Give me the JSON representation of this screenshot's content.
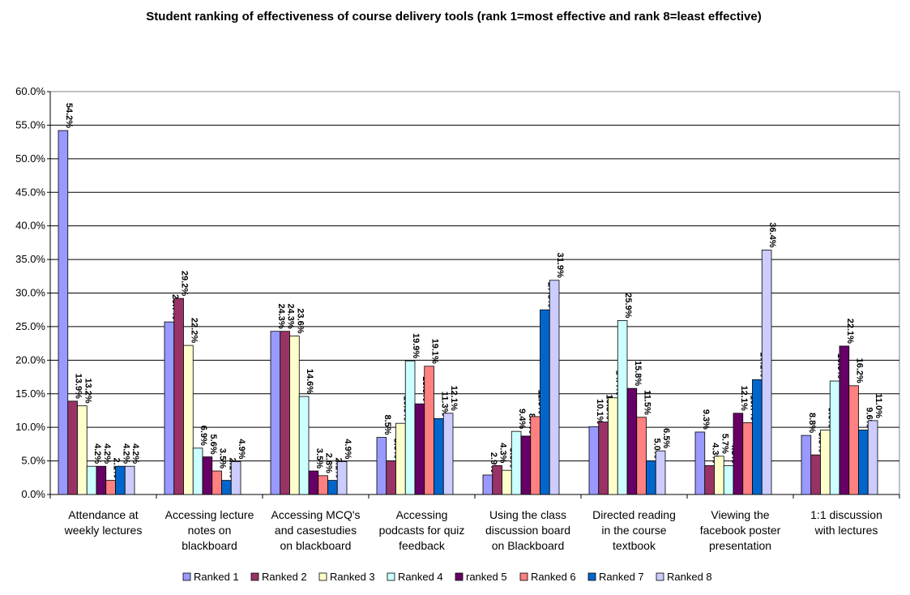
{
  "chart_data": {
    "type": "bar",
    "title": "Student ranking of effectiveness of course delivery tools (rank 1=most effective and rank 8=least effective)",
    "xlabel": "",
    "ylabel": "",
    "ylim": [
      0,
      60
    ],
    "yticks": [
      "0.0%",
      "5.0%",
      "10.0%",
      "15.0%",
      "20.0%",
      "25.0%",
      "30.0%",
      "35.0%",
      "40.0%",
      "45.0%",
      "50.0%",
      "55.0%",
      "60.0%"
    ],
    "grid": true,
    "legend_position": "bottom",
    "categories": [
      [
        "Attendance at",
        "weekly lectures"
      ],
      [
        "Accessing lecture",
        "notes on",
        "blackboard"
      ],
      [
        "Accessing MCQ's",
        "and casestudies",
        "on blackboard"
      ],
      [
        "Accessing",
        "podcasts for quiz",
        "feedback"
      ],
      [
        "Using the class",
        "discussion board",
        "on Blackboard"
      ],
      [
        "Directed reading",
        "in the course",
        "textbook"
      ],
      [
        "Viewing the",
        "facebook poster",
        "presentation"
      ],
      [
        "1:1 discussion",
        "with lectures"
      ]
    ],
    "series": [
      {
        "name": "Ranked 1",
        "color": "#9999ff",
        "values": [
          54.2,
          25.7,
          24.3,
          8.5,
          2.9,
          10.1,
          9.3,
          8.8
        ],
        "labels": [
          "54.2%",
          "25.7%",
          "24.3%",
          "8.5%",
          "2.9%",
          "10.1%",
          "9.3%",
          "8.8%"
        ]
      },
      {
        "name": "Ranked 2",
        "color": "#993366",
        "values": [
          13.9,
          29.2,
          24.3,
          5.0,
          4.3,
          10.8,
          4.3,
          5.9
        ],
        "labels": [
          "13.9%",
          "29.2%",
          "24.3%",
          "5.0%",
          "4.3%",
          "10.8%",
          "4.3%",
          "5.9%"
        ]
      },
      {
        "name": "Ranked 3",
        "color": "#ffffcc",
        "values": [
          13.2,
          22.2,
          23.6,
          10.6,
          3.6,
          14.4,
          5.7,
          9.6
        ],
        "labels": [
          "13.2%",
          "22.2%",
          "23.6%",
          "10.6%",
          "3.6%",
          "14.4%",
          "5.7%",
          "9.6%"
        ]
      },
      {
        "name": "Ranked 4",
        "color": "#ccffff",
        "values": [
          4.2,
          6.9,
          14.6,
          19.9,
          9.4,
          25.9,
          4.3,
          16.9
        ],
        "labels": [
          "4.2%",
          "6.9%",
          "14.6%",
          "19.9%",
          "9.4%",
          "25.9%",
          "4.3%",
          "16.9%"
        ]
      },
      {
        "name": "ranked 5",
        "color": "#660066",
        "values": [
          4.2,
          5.6,
          3.5,
          13.5,
          8.7,
          15.8,
          12.1,
          22.1
        ],
        "labels": [
          "4.2%",
          "5.6%",
          "3.5%",
          "13.5%",
          "8.7%",
          "15.8%",
          "12.1%",
          "22.1%"
        ]
      },
      {
        "name": "Ranked 6",
        "color": "#ff8080",
        "values": [
          2.1,
          3.5,
          2.8,
          19.1,
          11.6,
          11.5,
          10.7,
          16.2
        ],
        "labels": [
          "2.1%",
          "3.5%",
          "2.8%",
          "19.1%",
          "11.6%",
          "11.5%",
          "10.7%",
          "16.2%"
        ]
      },
      {
        "name": "Ranked 7",
        "color": "#0066cc",
        "values": [
          4.2,
          2.1,
          2.1,
          11.3,
          27.5,
          5.0,
          17.1,
          9.6
        ],
        "labels": [
          "4.2%",
          "2.1%",
          "2.1%",
          "11.3%",
          "27.5%",
          "5.0%",
          "17.1%",
          "9.6%"
        ]
      },
      {
        "name": "Ranked 8",
        "color": "#ccccff",
        "values": [
          4.2,
          4.9,
          4.9,
          12.1,
          31.9,
          6.5,
          36.4,
          11.0
        ],
        "labels": [
          "4.2%",
          "4.9%",
          "4.9%",
          "12.1%",
          "31.9%",
          "6.5%",
          "36.4%",
          "11.0%"
        ]
      }
    ]
  }
}
